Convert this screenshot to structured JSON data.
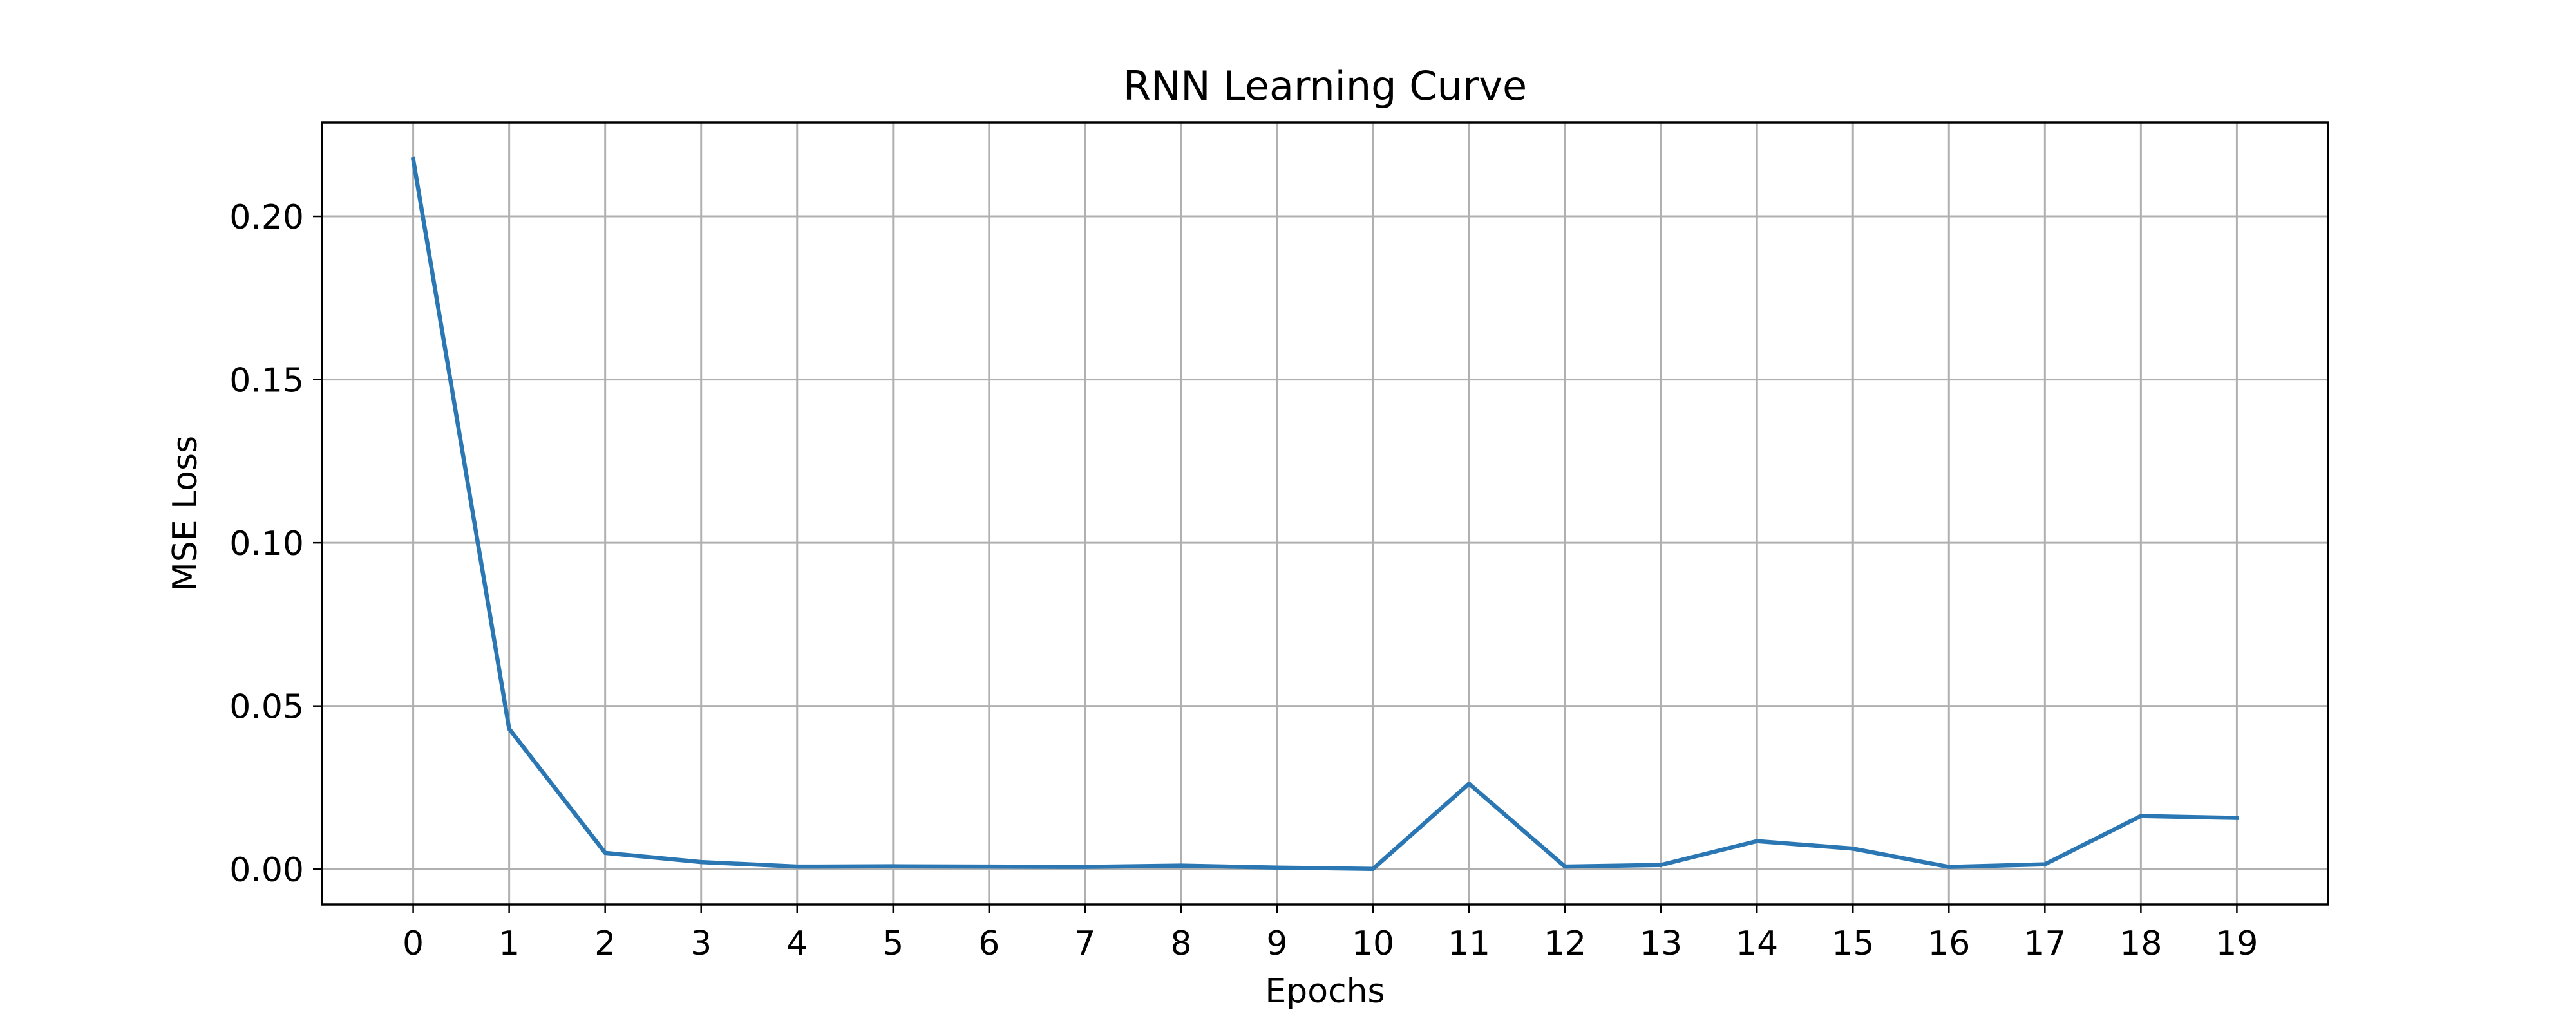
{
  "chart_data": {
    "type": "line",
    "title": "RNN Learning Curve",
    "xlabel": "Epochs",
    "ylabel": "MSE Loss",
    "x": [
      0,
      1,
      2,
      3,
      4,
      5,
      6,
      7,
      8,
      9,
      10,
      11,
      12,
      13,
      14,
      15,
      16,
      17,
      18,
      19
    ],
    "x_tick_labels": [
      "0",
      "1",
      "2",
      "3",
      "4",
      "5",
      "6",
      "7",
      "8",
      "9",
      "10",
      "11",
      "12",
      "13",
      "14",
      "15",
      "16",
      "17",
      "18",
      "19"
    ],
    "y_ticks": [
      0.0,
      0.05,
      0.1,
      0.15,
      0.2
    ],
    "y_tick_labels": [
      "0.00",
      "0.05",
      "0.10",
      "0.15",
      "0.20"
    ],
    "xlim": [
      -0.95,
      19.95
    ],
    "ylim": [
      -0.0108,
      0.2288
    ],
    "grid": true,
    "series": [
      {
        "color": "#2a77b4",
        "values": [
          0.2175,
          0.043,
          0.005,
          0.0022,
          0.0008,
          0.0009,
          0.0008,
          0.0007,
          0.0011,
          0.0005,
          0.0001,
          0.0262,
          0.0008,
          0.0013,
          0.0086,
          0.0063,
          0.0007,
          0.0015,
          0.0163,
          0.0157
        ]
      }
    ]
  }
}
